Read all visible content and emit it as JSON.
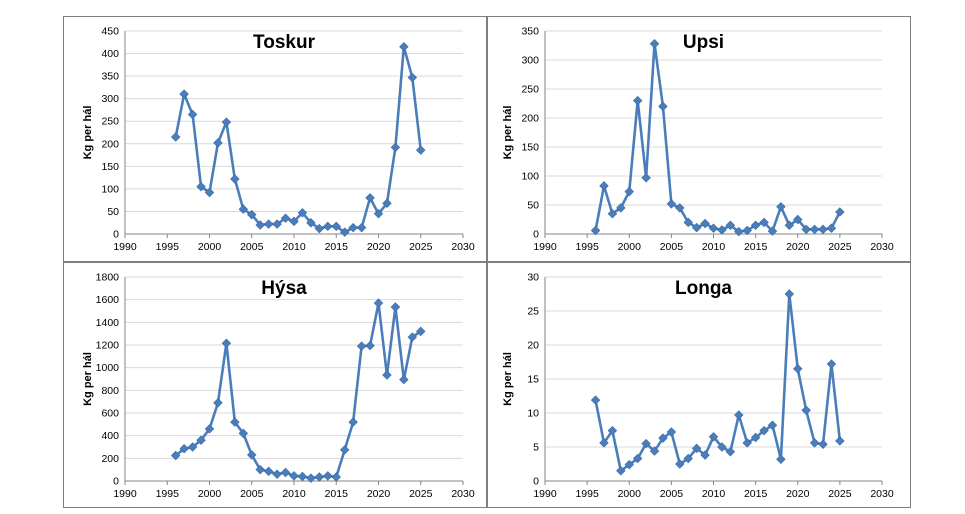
{
  "chart_data": [
    {
      "type": "line",
      "title": "Toskur",
      "xlabel": "",
      "ylabel": "Kg per hál",
      "xlim": [
        1990,
        2030
      ],
      "ylim": [
        0,
        450
      ],
      "xticks": [
        1990,
        1995,
        2000,
        2005,
        2010,
        2015,
        2020,
        2025,
        2030
      ],
      "yticks": [
        0,
        50,
        100,
        150,
        200,
        250,
        300,
        350,
        400,
        450
      ],
      "grid": true,
      "color": "#4a7ebb",
      "x": [
        1996,
        1997,
        1998,
        1999,
        2000,
        2001,
        2002,
        2003,
        2004,
        2005,
        2006,
        2007,
        2008,
        2009,
        2010,
        2011,
        2012,
        2013,
        2014,
        2015,
        2016,
        2017,
        2018,
        2019,
        2020,
        2021,
        2022,
        2023,
        2024,
        2025
      ],
      "y": [
        215,
        310,
        265,
        105,
        92,
        202,
        248,
        122,
        55,
        43,
        20,
        22,
        22,
        35,
        28,
        47,
        25,
        12,
        17,
        17,
        4,
        14,
        14,
        80,
        45,
        68,
        192,
        415,
        347,
        186
      ]
    },
    {
      "type": "line",
      "title": "Upsi",
      "xlabel": "",
      "ylabel": "Kg per hál",
      "xlim": [
        1990,
        2030
      ],
      "ylim": [
        0,
        350
      ],
      "xticks": [
        1990,
        1995,
        2000,
        2005,
        2010,
        2015,
        2020,
        2025,
        2030
      ],
      "yticks": [
        0,
        50,
        100,
        150,
        200,
        250,
        300,
        350
      ],
      "grid": true,
      "color": "#4a7ebb",
      "x": [
        1996,
        1997,
        1998,
        1999,
        2000,
        2001,
        2002,
        2003,
        2004,
        2005,
        2006,
        2007,
        2008,
        2009,
        2010,
        2011,
        2012,
        2013,
        2014,
        2015,
        2016,
        2017,
        2018,
        2019,
        2020,
        2021,
        2022,
        2023,
        2024,
        2025
      ],
      "y": [
        6,
        83,
        35,
        45,
        73,
        230,
        97,
        328,
        220,
        52,
        45,
        20,
        11,
        18,
        10,
        7,
        15,
        4,
        6,
        15,
        20,
        5,
        47,
        15,
        25,
        8,
        8,
        8,
        10,
        38
      ]
    },
    {
      "type": "line",
      "title": "Hýsa",
      "xlabel": "",
      "ylabel": "Kg per hál",
      "xlim": [
        1990,
        2030
      ],
      "ylim": [
        0,
        1800
      ],
      "xticks": [
        1990,
        1995,
        2000,
        2005,
        2010,
        2015,
        2020,
        2025,
        2030
      ],
      "yticks": [
        0,
        200,
        400,
        600,
        800,
        1000,
        1200,
        1400,
        1600,
        1800
      ],
      "grid": true,
      "color": "#4a7ebb",
      "x": [
        1996,
        1997,
        1998,
        1999,
        2000,
        2001,
        2002,
        2003,
        2004,
        2005,
        2006,
        2007,
        2008,
        2009,
        2010,
        2011,
        2012,
        2013,
        2014,
        2015,
        2016,
        2017,
        2018,
        2019,
        2020,
        2021,
        2022,
        2023,
        2024,
        2025
      ],
      "y": [
        225,
        285,
        300,
        360,
        460,
        690,
        1215,
        520,
        420,
        230,
        100,
        85,
        60,
        75,
        45,
        40,
        25,
        35,
        45,
        35,
        275,
        520,
        1190,
        1195,
        1570,
        935,
        1535,
        895,
        1270,
        1320
      ]
    },
    {
      "type": "line",
      "title": "Longa",
      "xlabel": "",
      "ylabel": "Kg per hál",
      "xlim": [
        1990,
        2030
      ],
      "ylim": [
        0,
        30
      ],
      "xticks": [
        1990,
        1995,
        2000,
        2005,
        2010,
        2015,
        2020,
        2025,
        2030
      ],
      "yticks": [
        0,
        5,
        10,
        15,
        20,
        25,
        30
      ],
      "grid": true,
      "color": "#4a7ebb",
      "x": [
        1996,
        1997,
        1998,
        1999,
        2000,
        2001,
        2002,
        2003,
        2004,
        2005,
        2006,
        2007,
        2008,
        2009,
        2010,
        2011,
        2012,
        2013,
        2014,
        2015,
        2016,
        2017,
        2018,
        2019,
        2020,
        2021,
        2022,
        2023,
        2024,
        2025
      ],
      "y": [
        11.9,
        5.6,
        7.4,
        1.5,
        2.4,
        3.3,
        5.5,
        4.4,
        6.3,
        7.2,
        2.5,
        3.3,
        4.8,
        3.8,
        6.5,
        5.0,
        4.3,
        9.7,
        5.6,
        6.4,
        7.4,
        8.2,
        3.2,
        27.5,
        16.5,
        10.4,
        5.6,
        5.4,
        17.2,
        5.9
      ]
    }
  ]
}
